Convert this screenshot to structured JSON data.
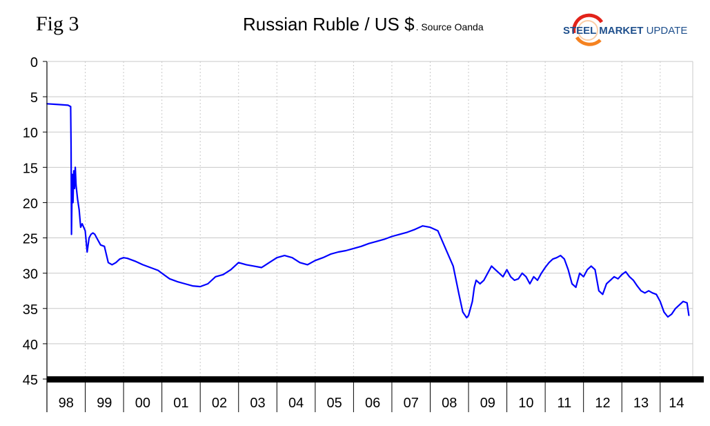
{
  "fig_label": "Fig 3",
  "title": "Russian Ruble / US $",
  "source": ". Source Oanda",
  "logo": {
    "steel": "STEEL",
    "market": "MARKET",
    "update": "UPDATE"
  },
  "colors": {
    "line": "#0000ff",
    "grid": "#c8c8c8",
    "axis": "#000000",
    "logo_red": "#e2231a",
    "logo_orange": "#f58220",
    "logo_blue": "#1e4f8c"
  },
  "chart_data": {
    "type": "line",
    "title": "Russian Ruble / US $",
    "xlabel": "",
    "ylabel": "",
    "y_inverted": true,
    "ylim": [
      0,
      45
    ],
    "yticks": [
      0,
      5,
      10,
      15,
      20,
      25,
      30,
      35,
      40,
      45
    ],
    "xlim": [
      1998.0,
      2014.85
    ],
    "year_labels": [
      "98",
      "99",
      "00",
      "01",
      "02",
      "03",
      "04",
      "05",
      "06",
      "07",
      "08",
      "09",
      "10",
      "11",
      "12",
      "13",
      "14"
    ],
    "grid": true,
    "series": [
      {
        "name": "",
        "x": [
          1998.0,
          1998.3,
          1998.55,
          1998.62,
          1998.63,
          1998.64,
          1998.66,
          1998.68,
          1998.7,
          1998.72,
          1998.74,
          1998.76,
          1998.8,
          1998.84,
          1998.88,
          1998.92,
          1998.96,
          1999.0,
          1999.05,
          1999.1,
          1999.15,
          1999.2,
          1999.25,
          1999.3,
          1999.4,
          1999.5,
          1999.6,
          1999.7,
          1999.8,
          1999.9,
          2000.0,
          2000.1,
          2000.3,
          2000.5,
          2000.7,
          2000.9,
          2001.0,
          2001.2,
          2001.4,
          2001.6,
          2001.8,
          2002.0,
          2002.2,
          2002.4,
          2002.6,
          2002.8,
          2003.0,
          2003.2,
          2003.4,
          2003.6,
          2003.8,
          2004.0,
          2004.2,
          2004.4,
          2004.6,
          2004.8,
          2005.0,
          2005.2,
          2005.4,
          2005.6,
          2005.8,
          2006.0,
          2006.2,
          2006.4,
          2006.6,
          2006.8,
          2007.0,
          2007.2,
          2007.4,
          2007.6,
          2007.8,
          2008.0,
          2008.2,
          2008.4,
          2008.6,
          2008.75,
          2008.85,
          2008.95,
          2009.0,
          2009.05,
          2009.1,
          2009.15,
          2009.2,
          2009.3,
          2009.4,
          2009.5,
          2009.6,
          2009.7,
          2009.8,
          2009.9,
          2010.0,
          2010.1,
          2010.2,
          2010.3,
          2010.4,
          2010.5,
          2010.6,
          2010.7,
          2010.8,
          2010.9,
          2011.0,
          2011.1,
          2011.2,
          2011.3,
          2011.4,
          2011.5,
          2011.6,
          2011.7,
          2011.8,
          2011.9,
          2012.0,
          2012.1,
          2012.2,
          2012.3,
          2012.4,
          2012.5,
          2012.6,
          2012.7,
          2012.8,
          2012.9,
          2013.0,
          2013.1,
          2013.2,
          2013.3,
          2013.4,
          2013.5,
          2013.6,
          2013.7,
          2013.8,
          2013.9,
          2014.0,
          2014.1,
          2014.2,
          2014.3,
          2014.4,
          2014.5,
          2014.6,
          2014.7,
          2014.75
        ],
        "y": [
          6.0,
          6.1,
          6.2,
          6.4,
          12.0,
          24.5,
          16.0,
          20.0,
          15.5,
          18.0,
          15.0,
          17.5,
          19.5,
          21.0,
          23.5,
          23.0,
          23.5,
          24.0,
          27.0,
          25.0,
          24.5,
          24.3,
          24.5,
          25.0,
          26.0,
          26.2,
          28.5,
          28.8,
          28.5,
          28.0,
          27.8,
          27.9,
          28.3,
          28.8,
          29.2,
          29.6,
          30.0,
          30.8,
          31.2,
          31.5,
          31.8,
          31.9,
          31.5,
          30.5,
          30.2,
          29.5,
          28.5,
          28.8,
          29.0,
          29.2,
          28.5,
          27.8,
          27.5,
          27.8,
          28.5,
          28.8,
          28.2,
          27.8,
          27.3,
          27.0,
          26.8,
          26.5,
          26.2,
          25.8,
          25.5,
          25.2,
          24.8,
          24.5,
          24.2,
          23.8,
          23.3,
          23.5,
          24.0,
          26.5,
          29.0,
          33.0,
          35.5,
          36.3,
          36.0,
          35.0,
          34.0,
          32.0,
          31.0,
          31.5,
          31.0,
          30.0,
          29.0,
          29.5,
          30.0,
          30.5,
          29.5,
          30.5,
          31.0,
          30.8,
          30.0,
          30.5,
          31.5,
          30.5,
          31.0,
          30.0,
          29.2,
          28.5,
          28.0,
          27.8,
          27.5,
          28.0,
          29.5,
          31.5,
          32.0,
          30.0,
          30.5,
          29.5,
          29.0,
          29.5,
          32.5,
          33.0,
          31.5,
          31.0,
          30.5,
          30.8,
          30.2,
          29.8,
          30.5,
          31.0,
          31.8,
          32.5,
          32.8,
          32.5,
          32.8,
          33.0,
          34.0,
          35.5,
          36.2,
          35.8,
          35.0,
          34.5,
          34.0,
          34.2,
          36.0
        ]
      }
    ]
  }
}
